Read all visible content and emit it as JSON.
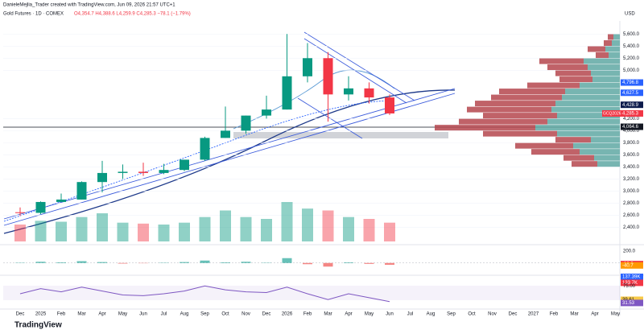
{
  "chart_data": {
    "type": "candlestick",
    "credit": "DanieleMejlia_Trader created with TradingView.com, Jun 09, 2026 21:57 UTC+1",
    "title": "Gold Futures · 1D · COMEX",
    "subtitle": "O4,354.7  H4,388.6  L4,259.9  C4,285.3  −78.1 (−1.79%)",
    "brand": "TradingView",
    "currency": "USD",
    "up_color": "#089981",
    "down_color": "#f23645",
    "categories": [
      "Dec",
      "2025",
      "Feb",
      "Mar",
      "Apr",
      "May",
      "Jun",
      "Jul",
      "Aug",
      "Sep",
      "Oct",
      "Nov",
      "Dec",
      "2026",
      "Feb",
      "Mar",
      "Apr",
      "May",
      "Jun",
      "Jul",
      "Aug",
      "Sep",
      "Oct",
      "Nov",
      "Dec",
      "2027",
      "Feb",
      "Mar",
      "Apr",
      "May"
    ],
    "open": [
      2650,
      2640,
      2820,
      2860,
      3150,
      3300,
      3320,
      3300,
      3350,
      3520,
      3880,
      4000,
      4250,
      4350,
      4900,
      5200,
      4600,
      4700,
      4550,
      null,
      null,
      null,
      null,
      null,
      null,
      null,
      null,
      null,
      null,
      null
    ],
    "high": [
      2730,
      2830,
      2960,
      3160,
      3500,
      3440,
      3470,
      3450,
      3500,
      3900,
      4400,
      4250,
      4580,
      5600,
      5450,
      5300,
      4900,
      4800,
      4600,
      null,
      null,
      null,
      null,
      null,
      null,
      null,
      null,
      null,
      null,
      null
    ],
    "low": [
      2590,
      2620,
      2820,
      2860,
      2980,
      3200,
      3250,
      3280,
      3330,
      3500,
      3880,
      3950,
      4200,
      4350,
      4800,
      4150,
      4500,
      4450,
      4260,
      null,
      null,
      null,
      null,
      null,
      null,
      null,
      null,
      null,
      null,
      null
    ],
    "close": [
      2640,
      2820,
      2860,
      3150,
      3300,
      3320,
      3300,
      3350,
      3520,
      3880,
      4000,
      4250,
      4350,
      4900,
      5200,
      4600,
      4700,
      4550,
      4285.3,
      null,
      null,
      null,
      null,
      null,
      null,
      null,
      null,
      null,
      null,
      null
    ],
    "ylim": [
      2200,
      5750
    ],
    "yticks": [
      {
        "value": 5600,
        "label": "5,600.0"
      },
      {
        "value": 5400,
        "label": "5,400.0"
      },
      {
        "value": 5200,
        "label": "5,200.0"
      },
      {
        "value": 5000,
        "label": "5,000.0"
      },
      {
        "value": 4200,
        "label": "4,200.0"
      },
      {
        "value": 4000,
        "label": "4,000.0"
      },
      {
        "value": 3800,
        "label": "3,800.0"
      },
      {
        "value": 3600,
        "label": "3,600.0"
      },
      {
        "value": 3400,
        "label": "3,400.0"
      },
      {
        "value": 3200,
        "label": "3,200.0"
      },
      {
        "value": 3000,
        "label": "3,000.0"
      },
      {
        "value": 2800,
        "label": "2,800.0"
      },
      {
        "value": 2600,
        "label": "2,600.0"
      },
      {
        "value": 2400,
        "label": "2,400.0"
      }
    ],
    "symbol": "GCQ2026",
    "level_labels": [
      {
        "value": 4796.8,
        "label": "4,796.8",
        "color": "#2962ff"
      },
      {
        "value": 4627.5,
        "label": "4,627.5",
        "color": "#2962ff"
      },
      {
        "value": 4428.9,
        "label": "4,428.9",
        "color": "#0d1b4c"
      },
      {
        "value": 4285.3,
        "label": "4,285.3",
        "color": "#f23645"
      },
      {
        "value": 4064.6,
        "label": "4,064.6",
        "color": "#131722"
      }
    ],
    "volume_profile": {
      "levels": [
        5550,
        5450,
        5350,
        5250,
        5150,
        5050,
        4950,
        4850,
        4750,
        4650,
        4550,
        4450,
        4350,
        4250,
        4150,
        4050,
        3950,
        3850,
        3750,
        3650,
        3550,
        3450
      ],
      "up": [
        8,
        10,
        18,
        14,
        45,
        40,
        36,
        34,
        50,
        68,
        72,
        80,
        85,
        78,
        90,
        105,
        78,
        36,
        58,
        50,
        32,
        28
      ],
      "down": [
        7,
        10,
        22,
        16,
        55,
        50,
        44,
        41,
        65,
        82,
        88,
        100,
        105,
        92,
        110,
        125,
        92,
        44,
        72,
        60,
        38,
        32
      ],
      "up_color": "#5fa8a3",
      "down_color": "#b5474e",
      "xlim": [
        0,
        240
      ]
    },
    "volume": {
      "values": [
        180,
        220,
        210,
        260,
        300,
        200,
        190,
        180,
        200,
        260,
        330,
        260,
        240,
        420,
        350,
        330,
        260,
        240,
        200
      ],
      "ylim": [
        0,
        600
      ],
      "labels": [
        {
          "value": 137.39,
          "label": "137.39K",
          "color": "#2962ff"
        },
        {
          "value": 133.7,
          "label": "133.7K",
          "color": "#f23645"
        }
      ]
    },
    "macd": {
      "values": [
        5,
        20,
        10,
        30,
        15,
        -10,
        -5,
        5,
        15,
        40,
        10,
        20,
        5,
        80,
        -20,
        -60,
        10,
        -15,
        -30
      ],
      "ylim": [
        -150,
        250
      ],
      "yticks": [
        {
          "value": 200,
          "label": "200.0"
        }
      ],
      "labels": [
        {
          "value": -18,
          "label": "-18.0",
          "color": "#f23645"
        },
        {
          "value": -40.7,
          "label": "-40.7",
          "color": "#ff9800"
        }
      ]
    },
    "rsi": {
      "values": [
        55,
        68,
        60,
        72,
        62,
        52,
        50,
        55,
        62,
        75,
        65,
        60,
        58,
        72,
        55,
        40,
        55,
        45,
        35
      ],
      "ylim": [
        20,
        90
      ],
      "yticks": [
        {
          "value": 75,
          "label": "75.00"
        }
      ],
      "labels": [
        {
          "value": 39.61,
          "label": "39.61",
          "color": "#f7c948"
        },
        {
          "value": 31.53,
          "label": "31.53",
          "color": "#7e57c2"
        }
      ]
    }
  }
}
